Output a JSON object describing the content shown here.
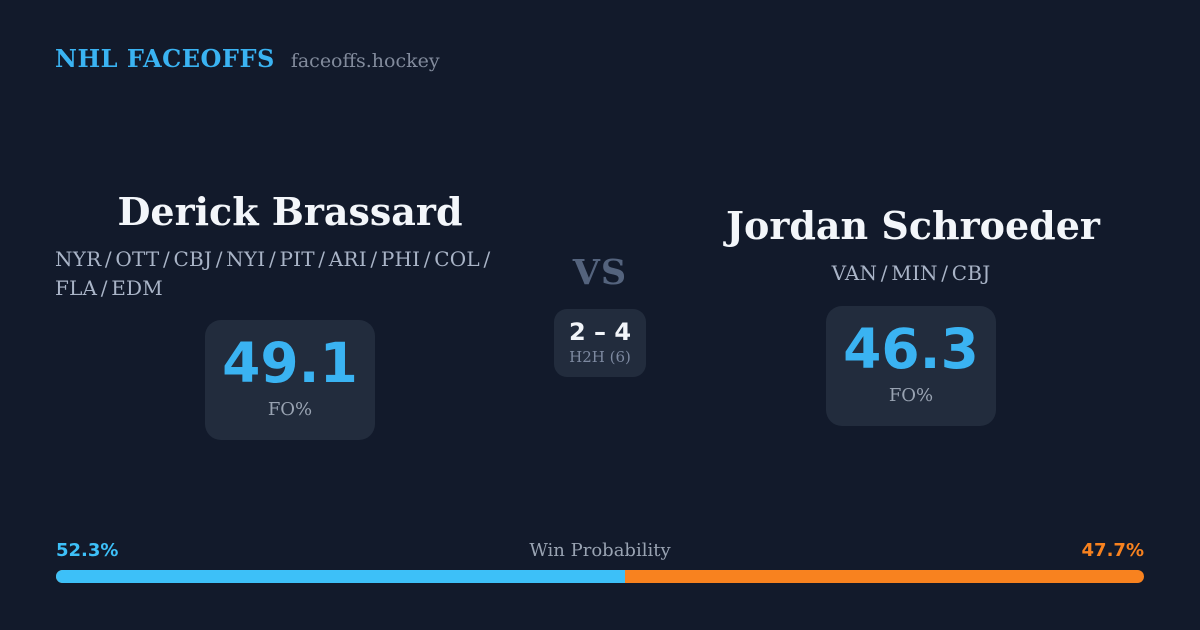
{
  "colors": {
    "background": "#121a2b",
    "card": "#222c3d",
    "accent_blue": "#3ab3f2",
    "bar_blue": "#3dc0f8",
    "orange": "#f8821f",
    "name_white": "#f3f6fa",
    "teams_gray": "#a9b4c7",
    "site_gray": "#828b9c",
    "label_gray": "#99a3b2",
    "vs_slate": "#54637d",
    "h2h_gray": "#7d89a0",
    "score_white": "#f2f5f9"
  },
  "header": {
    "brand": "NHL FACEOFFS",
    "site": "faceoffs.hockey"
  },
  "left_player": {
    "name": "Derick Brassard",
    "teams": "NYR / OTT / CBJ / NYI / PIT / ARI / PHI / COL / FLA / EDM",
    "stat_value": "49.1",
    "stat_label": "FO%"
  },
  "matchup": {
    "vs": "VS",
    "score": "2 – 4",
    "h2h_label": "H2H (6)"
  },
  "right_player": {
    "name": "Jordan Schroeder",
    "teams": "VAN / MIN / CBJ",
    "stat_value": "46.3",
    "stat_label": "FO%"
  },
  "win_probability": {
    "title": "Win Probability",
    "left_pct": "52.3%",
    "right_pct": "47.7%",
    "left_value": 52.3,
    "right_value": 47.7
  }
}
